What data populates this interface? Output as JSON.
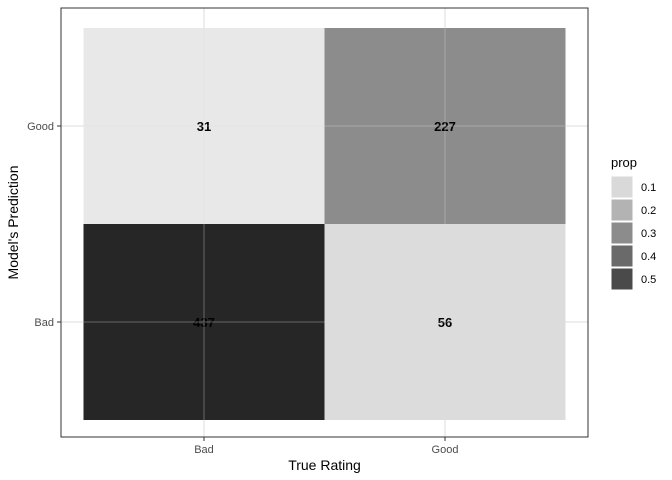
{
  "chart_data": {
    "type": "heatmap",
    "xlabel": "True Rating",
    "ylabel": "Model's Prediction",
    "x_categories": [
      "Bad",
      "Good"
    ],
    "y_categories": [
      "Bad",
      "Good"
    ],
    "cells": [
      {
        "x": "Bad",
        "y": "Good",
        "count": 31,
        "label": "31",
        "prop": 0.04
      },
      {
        "x": "Good",
        "y": "Good",
        "count": 227,
        "label": "227",
        "prop": 0.3
      },
      {
        "x": "Bad",
        "y": "Bad",
        "count": 437,
        "label": "437",
        "prop": 0.58
      },
      {
        "x": "Good",
        "y": "Bad",
        "count": 56,
        "label": "56",
        "prop": 0.07
      }
    ],
    "legend": {
      "title": "prop",
      "placement": "right",
      "entries": [
        {
          "label": "0.1",
          "value": 0.1
        },
        {
          "label": "0.2",
          "value": 0.2
        },
        {
          "label": "0.3",
          "value": 0.3
        },
        {
          "label": "0.4",
          "value": 0.4
        },
        {
          "label": "0.5",
          "value": 0.5
        }
      ]
    },
    "grid": true,
    "colors": {
      "panel_border": "#333333",
      "grid": "#dedede",
      "cells_by_prop": [
        {
          "prop": 0.04,
          "color": "#e8e8e8"
        },
        {
          "prop": 0.07,
          "color": "#dcdcdc"
        },
        {
          "prop": 0.3,
          "color": "#8c8c8c"
        },
        {
          "prop": 0.58,
          "color": "#262626"
        }
      ],
      "legend_keys": [
        "#d9d9d9",
        "#b3b3b3",
        "#8c8c8c",
        "#6a6a6a",
        "#4a4a4a"
      ]
    }
  }
}
